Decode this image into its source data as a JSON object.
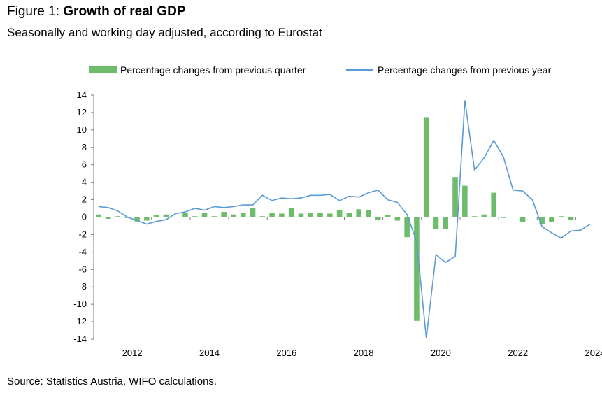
{
  "header": {
    "figure_label": "Figure 1:",
    "title": "Growth of real GDP",
    "subtitle": "Seasonally and working day adjusted, according to Eurostat"
  },
  "footer": {
    "source": "Source: Statistics Austria, WIFO calculations."
  },
  "colors": {
    "bar": "#6dbb6b",
    "line": "#5b9bd5",
    "axis": "#7f7f7f"
  },
  "chart_data": {
    "type": "bar",
    "legend_position": "top-right",
    "grid": false,
    "x_start_year": 2011.5,
    "x_end_year": 2024.5,
    "x_ticks": [
      2012,
      2014,
      2016,
      2018,
      2020,
      2022,
      2024
    ],
    "y_ticks": [
      14,
      12,
      10,
      8,
      6,
      4,
      2,
      0,
      -2,
      -4,
      -6,
      -8,
      -10,
      -12,
      -14
    ],
    "ylim": [
      -14,
      14
    ],
    "series": [
      {
        "name": "Percentage changes from previous quarter",
        "kind": "bar",
        "values": [
          0.3,
          -0.2,
          0.1,
          -0.1,
          -0.5,
          -0.4,
          0.2,
          0.3,
          0.0,
          0.5,
          0.1,
          0.5,
          0.1,
          0.6,
          0.3,
          0.5,
          1.0,
          0.1,
          0.5,
          0.4,
          1.0,
          0.4,
          0.5,
          0.5,
          0.4,
          0.8,
          0.5,
          0.9,
          0.8,
          -0.3,
          0.2,
          -0.4,
          -2.3,
          -11.9,
          11.4,
          -1.4,
          -1.4,
          4.6,
          3.6,
          0.1,
          0.3,
          2.8,
          -0.1,
          0.0,
          -0.6,
          0.0,
          -0.8,
          -0.6,
          0.1,
          -0.3,
          0.0,
          0.0
        ]
      },
      {
        "name": "Percentage changes from previous year",
        "kind": "line",
        "values": [
          1.2,
          1.1,
          0.7,
          0.0,
          -0.4,
          -0.8,
          -0.5,
          -0.3,
          0.4,
          0.6,
          1.0,
          0.8,
          1.2,
          1.1,
          1.2,
          1.4,
          1.4,
          2.5,
          1.9,
          2.2,
          2.1,
          2.2,
          2.5,
          2.5,
          2.6,
          1.9,
          2.4,
          2.3,
          2.8,
          3.1,
          2.0,
          1.7,
          0.3,
          -2.8,
          -13.9,
          -4.3,
          -5.2,
          -4.5,
          13.4,
          5.4,
          6.8,
          8.8,
          6.9,
          3.1,
          3.0,
          2.0,
          -1.1,
          -1.8,
          -2.4,
          -1.6,
          -1.5,
          -0.8
        ]
      }
    ]
  }
}
